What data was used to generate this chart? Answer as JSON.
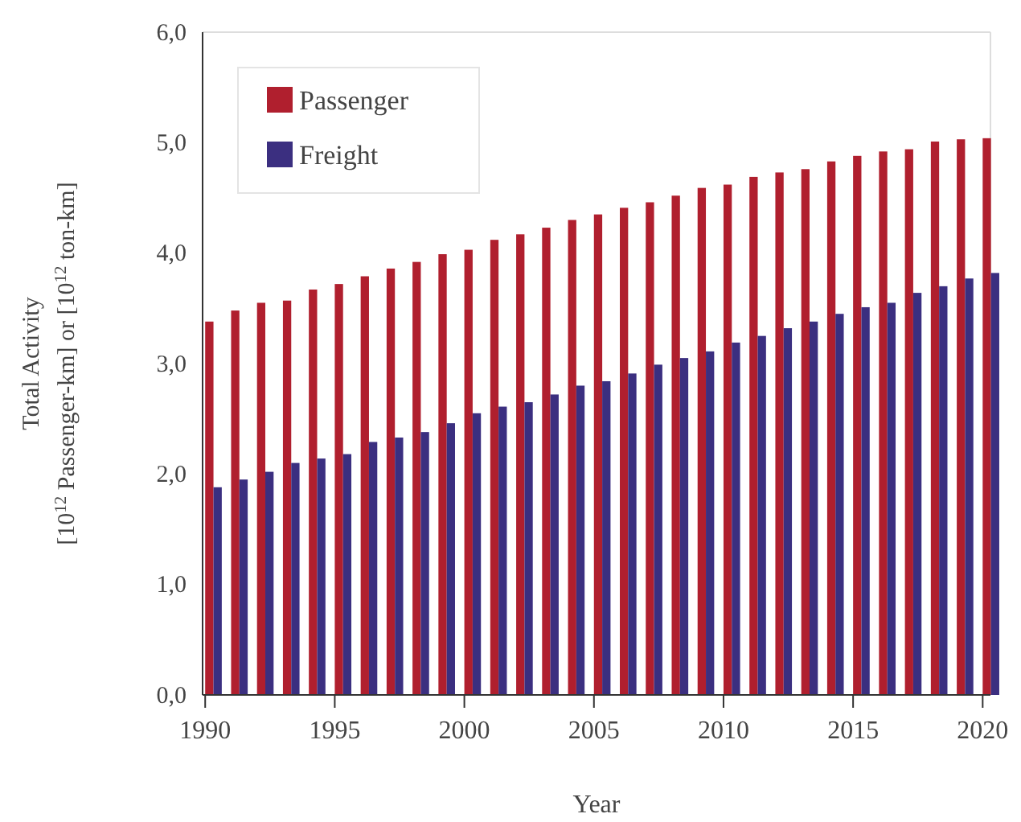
{
  "chart_data": {
    "type": "bar",
    "xlabel": "Year",
    "ylabel": "Total Activity\n[10$^{12}$ Passenger-km] or [10$^{12}$ ton-km]",
    "x": [
      1990,
      1991,
      1992,
      1993,
      1994,
      1995,
      1996,
      1997,
      1998,
      1999,
      2000,
      2001,
      2002,
      2003,
      2004,
      2005,
      2006,
      2007,
      2008,
      2009,
      2010,
      2011,
      2012,
      2013,
      2014,
      2015,
      2016,
      2017,
      2018,
      2019,
      2020
    ],
    "series": [
      {
        "name": "Passenger",
        "color": "#b01f2e",
        "values": [
          3.38,
          3.48,
          3.55,
          3.57,
          3.67,
          3.72,
          3.79,
          3.86,
          3.92,
          3.99,
          4.03,
          4.12,
          4.17,
          4.23,
          4.3,
          4.35,
          4.41,
          4.46,
          4.52,
          4.59,
          4.62,
          4.69,
          4.73,
          4.76,
          4.83,
          4.88,
          4.92,
          4.94,
          5.01,
          5.03,
          5.04
        ]
      },
      {
        "name": "Freight",
        "color": "#3b2f80",
        "values": [
          1.88,
          1.95,
          2.02,
          2.1,
          2.14,
          2.18,
          2.29,
          2.33,
          2.38,
          2.46,
          2.55,
          2.61,
          2.65,
          2.72,
          2.8,
          2.84,
          2.91,
          2.99,
          3.05,
          3.11,
          3.19,
          3.25,
          3.32,
          3.38,
          3.45,
          3.51,
          3.55,
          3.64,
          3.7,
          3.77,
          3.82
        ]
      }
    ],
    "xlim": [
      1989.9,
      2020.3
    ],
    "xticks": [
      1990,
      1995,
      2000,
      2005,
      2010,
      2015,
      2020
    ],
    "ylim": [
      0,
      6
    ],
    "yticks": [
      {
        "value": 0,
        "label": "0,0"
      },
      {
        "value": 1,
        "label": "1,0"
      },
      {
        "value": 2,
        "label": "2,0"
      },
      {
        "value": 3,
        "label": "3,0"
      },
      {
        "value": 4,
        "label": "4,0"
      },
      {
        "value": 5,
        "label": "5,0"
      },
      {
        "value": 6,
        "label": "6,0"
      }
    ],
    "legend": "top left"
  }
}
